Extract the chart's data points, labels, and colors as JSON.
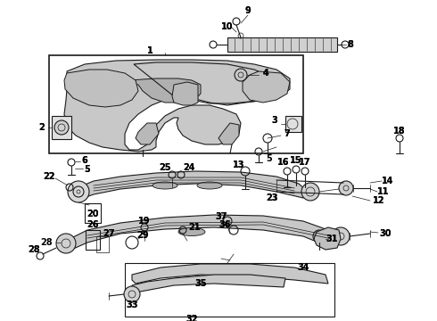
{
  "fig_width": 4.9,
  "fig_height": 3.6,
  "dpi": 100,
  "background_color": "#ffffff",
  "line_color": "#1a1a1a",
  "text_color": "#000000"
}
